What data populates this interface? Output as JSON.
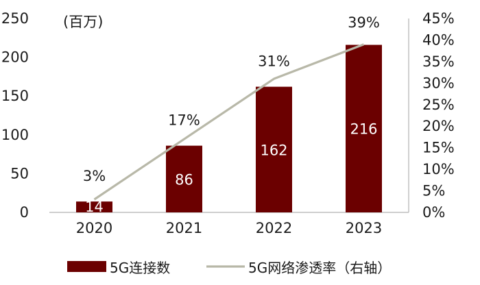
{
  "chart_data": {
    "type": "bar",
    "categories": [
      "2020",
      "2021",
      "2022",
      "2023"
    ],
    "series": [
      {
        "name": "5G连接数",
        "kind": "bar",
        "axis": "left",
        "color": "#6b0000",
        "values": [
          14,
          86,
          162,
          216
        ],
        "labels": [
          "14",
          "86",
          "162",
          "216"
        ]
      },
      {
        "name": "5G网络渗透率（右轴）",
        "kind": "line",
        "axis": "right",
        "color": "#b8b8a8",
        "values": [
          3,
          17,
          31,
          39
        ],
        "labels": [
          "3%",
          "17%",
          "31%",
          "39%"
        ]
      }
    ],
    "y_left": {
      "unit_label": "(百万)",
      "range": [
        0,
        250
      ],
      "ticks": [
        0,
        50,
        100,
        150,
        200,
        250
      ],
      "tick_labels": [
        "0",
        "50",
        "100",
        "150",
        "200",
        "250"
      ]
    },
    "y_right": {
      "range": [
        0,
        45
      ],
      "ticks": [
        0,
        5,
        10,
        15,
        20,
        25,
        30,
        35,
        40,
        45
      ],
      "tick_labels": [
        "0%",
        "5%",
        "10%",
        "15%",
        "20%",
        "25%",
        "30%",
        "35%",
        "40%",
        "45%"
      ]
    },
    "legend": {
      "position": "bottom"
    },
    "grid": false
  }
}
